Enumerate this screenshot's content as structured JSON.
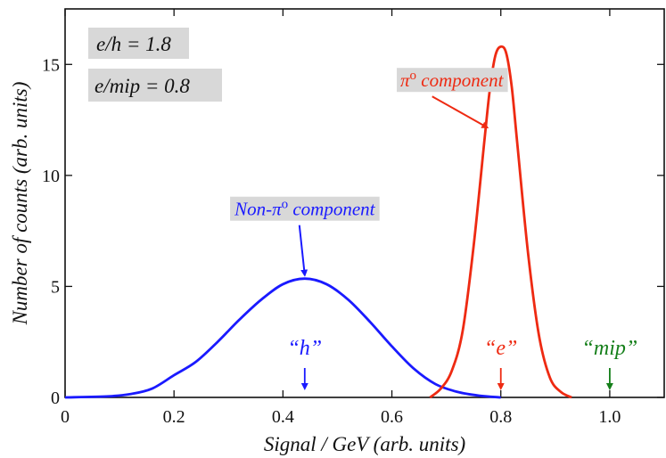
{
  "chart_data": {
    "type": "line",
    "xlabel": "Signal / GeV (arb. units)",
    "ylabel": "Number of counts (arb. units)",
    "xlim": [
      0,
      1.1
    ],
    "ylim": [
      0,
      17.5
    ],
    "xticks": [
      0,
      0.2,
      0.4,
      0.6,
      0.8,
      1.0
    ],
    "xtick_labels": [
      "0",
      "0.2",
      "0.4",
      "0.6",
      "0.8",
      "1.0"
    ],
    "yticks": [
      0,
      5,
      10,
      15
    ],
    "ytick_labels": [
      "0",
      "5",
      "10",
      "15"
    ],
    "grid": false,
    "series": [
      {
        "color": "#1a1aff",
        "x": [
          0.0,
          0.08,
          0.12,
          0.16,
          0.2,
          0.24,
          0.28,
          0.32,
          0.36,
          0.4,
          0.44,
          0.48,
          0.52,
          0.56,
          0.6,
          0.64,
          0.68,
          0.72,
          0.76,
          0.8
        ],
        "y": [
          0.0,
          0.05,
          0.15,
          0.4,
          1.0,
          1.6,
          2.5,
          3.5,
          4.4,
          5.1,
          5.35,
          5.1,
          4.4,
          3.4,
          2.3,
          1.3,
          0.6,
          0.25,
          0.08,
          0.0
        ]
      },
      {
        "color": "#ee2a12",
        "x": [
          0.67,
          0.69,
          0.71,
          0.73,
          0.75,
          0.77,
          0.78,
          0.79,
          0.8,
          0.81,
          0.82,
          0.83,
          0.85,
          0.87,
          0.89,
          0.91,
          0.93
        ],
        "y": [
          0.0,
          0.4,
          1.2,
          3.0,
          6.8,
          11.6,
          13.9,
          15.4,
          15.8,
          15.5,
          14.0,
          11.5,
          6.5,
          2.8,
          0.9,
          0.25,
          0.0
        ]
      }
    ],
    "annotations": [
      {
        "text_pre": "Non-π",
        "sup": "o",
        "text_post": " component",
        "color": "#1a1aff",
        "x": 0.44,
        "y": 5.35,
        "label_x": 0.44,
        "label_y": 8.2
      },
      {
        "text_pre": "π",
        "sup": "o",
        "text_post": " component",
        "color": "#ee2a12",
        "x": 0.775,
        "y": 12.0,
        "label_x": 0.71,
        "label_y": 14.0
      }
    ],
    "markers": [
      {
        "label": "“h”",
        "x": 0.44,
        "color": "#1a1aff"
      },
      {
        "label": "“e”",
        "x": 0.8,
        "color": "#ee2a12"
      },
      {
        "label": "“mip”",
        "x": 1.0,
        "color": "#157f1a"
      }
    ],
    "info_boxes": [
      "e/h = 1.8",
      "e/mip = 0.8"
    ]
  }
}
